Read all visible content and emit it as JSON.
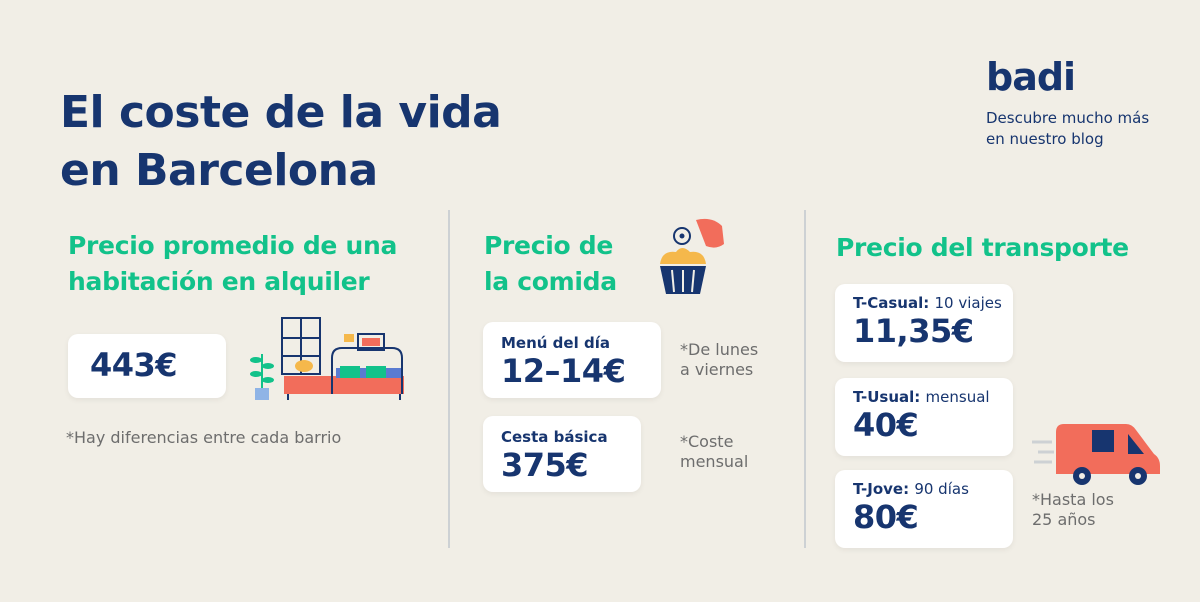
{
  "header": {
    "title_line1": "El coste de la vida",
    "title_line2": "en Barcelona",
    "logo": "badi",
    "tagline_line1": "Descubre mucho más",
    "tagline_line2": "en nuestro blog"
  },
  "rent": {
    "title_line1": "Precio promedio de una",
    "title_line2": "habitación en alquiler",
    "price": "443€",
    "note": "*Hay diferencias entre cada barrio"
  },
  "food": {
    "title_line1": "Precio de",
    "title_line2": "la comida",
    "menu_label": "Menú del día",
    "menu_value": "12–14€",
    "menu_note_line1": "*De lunes",
    "menu_note_line2": "a viernes",
    "basket_label": "Cesta básica",
    "basket_value": "375€",
    "basket_note_line1": "*Coste",
    "basket_note_line2": "mensual"
  },
  "transport": {
    "title": "Precio del transporte",
    "cards": [
      {
        "label": "T-Casual:",
        "detail": "10 viajes",
        "value": "11,35€"
      },
      {
        "label": "T-Usual:",
        "detail": "mensual",
        "value": "40€"
      },
      {
        "label": "T-Jove:",
        "detail": "90 días",
        "value": "80€"
      }
    ],
    "note_line1": "*Hasta los",
    "note_line2": "25 años"
  },
  "colors": {
    "background": "#f1eee6",
    "navy": "#17356f",
    "green": "#12c28a",
    "coral": "#f26d5b"
  },
  "icons": [
    "room-illustration-icon",
    "cupcake-icon",
    "van-icon"
  ]
}
